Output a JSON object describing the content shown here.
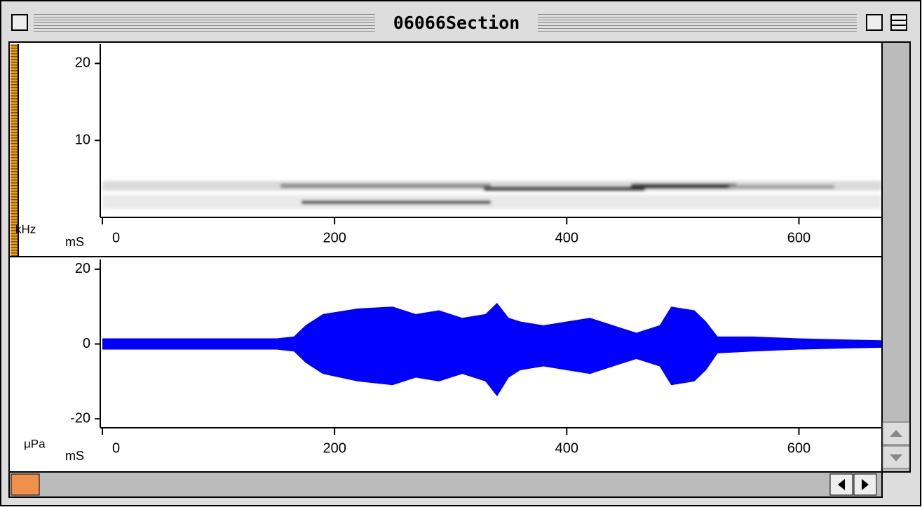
{
  "window": {
    "title": "06066Section"
  },
  "plots": [
    {
      "type": "spectrogram",
      "y_label": "kHz",
      "x_label": "mS",
      "xlim": [
        0,
        671
      ],
      "ylim": [
        0,
        22.5
      ],
      "xticks": [
        0,
        200,
        400,
        600
      ],
      "yticks": [
        10,
        20
      ]
    },
    {
      "type": "waveform",
      "y_label": "μPa",
      "x_label": "mS",
      "xlim": [
        0,
        671
      ],
      "ylim": [
        -22.4,
        22.6
      ],
      "xticks": [
        0,
        200,
        400,
        600
      ],
      "yticks": [
        -20,
        0,
        20
      ],
      "color": "#0000ff",
      "x": [
        0,
        50,
        100,
        150,
        165,
        175,
        190,
        220,
        250,
        270,
        290,
        310,
        330,
        340,
        350,
        360,
        380,
        400,
        420,
        440,
        460,
        480,
        490,
        510,
        520,
        530,
        560,
        600,
        640,
        671
      ],
      "upper": [
        1.5,
        1.5,
        1.5,
        1.5,
        2,
        5,
        8,
        9.5,
        10,
        8,
        9,
        7,
        8,
        11,
        7,
        6,
        5,
        6,
        7,
        5,
        3,
        5,
        10,
        9,
        6,
        2,
        2,
        1.5,
        1.2,
        1
      ],
      "lower": [
        -1.5,
        -1.5,
        -1.5,
        -1.5,
        -2,
        -5,
        -8,
        -10,
        -11,
        -9,
        -10,
        -8,
        -10,
        -14,
        -9,
        -7,
        -6,
        -7,
        -8,
        -6,
        -4,
        -6,
        -11,
        -10,
        -7,
        -2.5,
        -2,
        -1.5,
        -1.2,
        -1
      ]
    }
  ]
}
